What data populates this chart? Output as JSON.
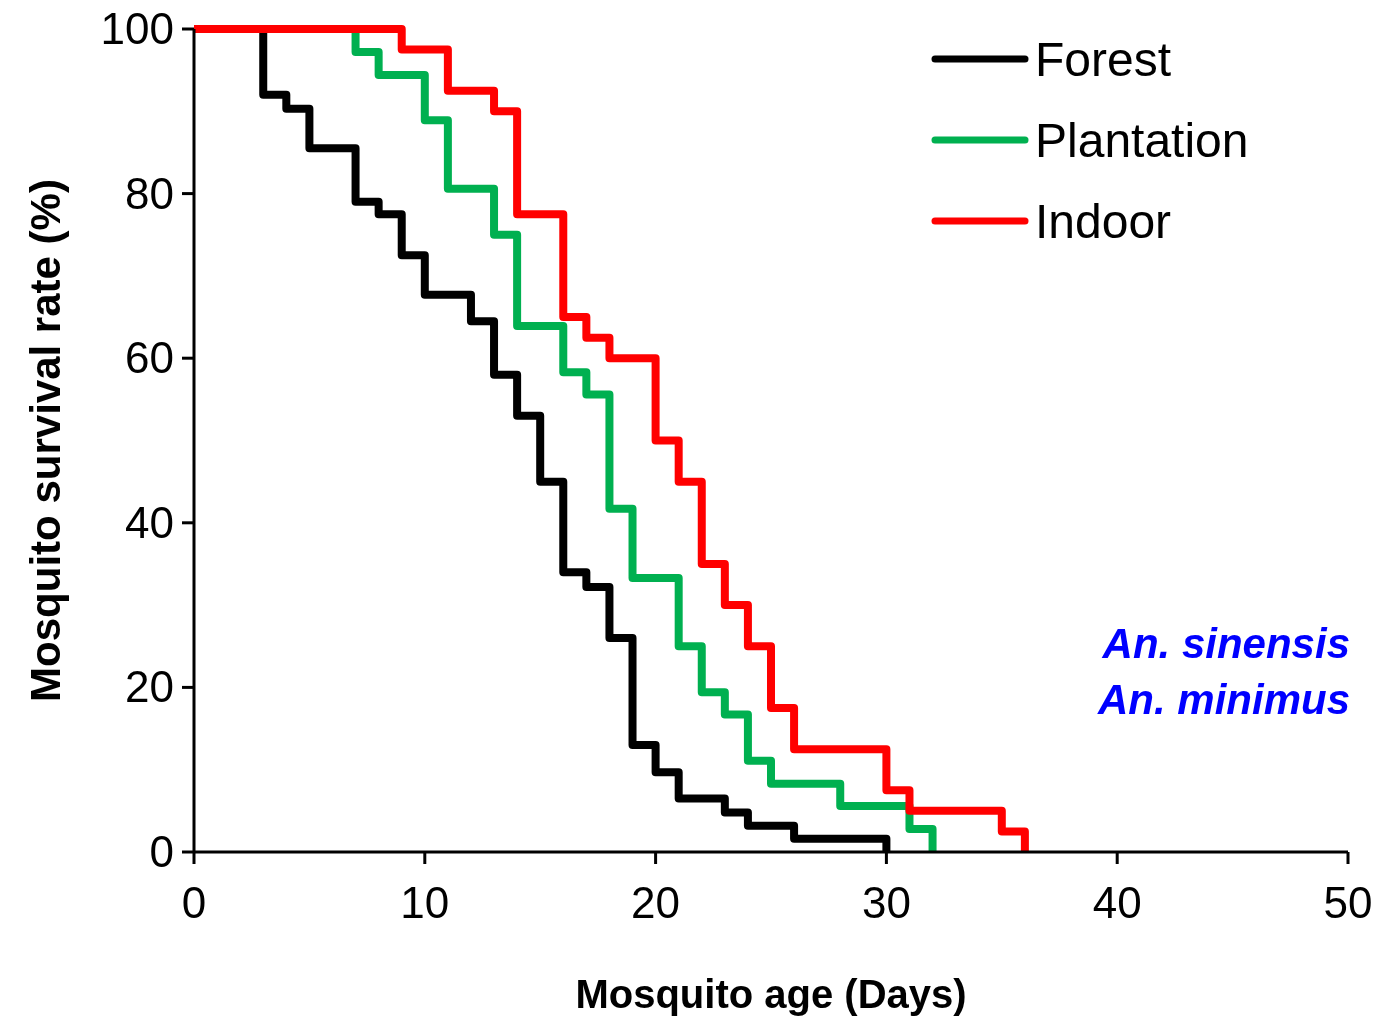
{
  "chart_data": {
    "type": "step",
    "xlabel": "Mosquito age (Days)",
    "ylabel": "Mosquito survival rate (%)",
    "xlim": [
      0,
      50
    ],
    "xticks": [
      0,
      10,
      20,
      30,
      40,
      50
    ],
    "ylim": [
      0,
      100
    ],
    "yticks": [
      0,
      20,
      40,
      60,
      80,
      100
    ],
    "grid": false,
    "legend": "top right",
    "line_style": "solid",
    "annotations": [
      "An. sinensis",
      "An. minimus"
    ],
    "series": [
      {
        "name": "Forest",
        "color": "#000000",
        "x": [
          0,
          3,
          4,
          5,
          7,
          8,
          9,
          10,
          12,
          13,
          14,
          15,
          16,
          17,
          18,
          19,
          20,
          21,
          23,
          24,
          26,
          30
        ],
        "values": [
          100,
          92,
          90.3,
          85.5,
          79,
          77.5,
          72.5,
          67.7,
          64.5,
          58,
          53,
          45,
          34,
          32.2,
          26,
          13,
          9.7,
          6.5,
          4.8,
          3.2,
          1.6,
          0
        ]
      },
      {
        "name": "Plantation",
        "color": "#00b050",
        "x": [
          0,
          7,
          8,
          10,
          11,
          13,
          14,
          16,
          17,
          18,
          19,
          21,
          22,
          23,
          24,
          25,
          28,
          31,
          32
        ],
        "values": [
          100,
          97.2,
          94.4,
          88.9,
          80.6,
          75,
          63.9,
          58.3,
          55.6,
          41.7,
          33.3,
          25,
          19.4,
          16.7,
          11.1,
          8.3,
          5.6,
          2.8,
          0
        ]
      },
      {
        "name": "Indoor",
        "color": "#ff0000",
        "x": [
          0,
          9,
          11,
          13,
          14,
          16,
          17,
          18,
          20,
          21,
          22,
          23,
          24,
          25,
          26,
          30,
          31,
          35,
          36
        ],
        "values": [
          100,
          97.5,
          92.5,
          90,
          77.5,
          65,
          62.5,
          60,
          50,
          45,
          35,
          30,
          25,
          17.5,
          12.5,
          7.5,
          5,
          2.5,
          0
        ]
      }
    ]
  }
}
